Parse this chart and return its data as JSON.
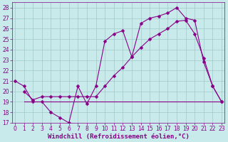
{
  "xlabel": "Windchill (Refroidissement éolien,°C)",
  "bg_color": "#c8eaea",
  "grid_color": "#a0c8c8",
  "line_color": "#880088",
  "xlim": [
    -0.3,
    23.3
  ],
  "ylim": [
    17,
    28.5
  ],
  "yticks": [
    17,
    18,
    19,
    20,
    21,
    22,
    23,
    24,
    25,
    26,
    27,
    28
  ],
  "xticks": [
    0,
    1,
    2,
    3,
    4,
    5,
    6,
    7,
    8,
    9,
    10,
    11,
    12,
    13,
    14,
    15,
    16,
    17,
    18,
    19,
    20,
    21,
    22,
    23
  ],
  "line1_x": [
    0,
    1,
    2,
    3,
    4,
    5,
    6,
    7,
    8,
    9,
    10,
    11,
    12,
    13,
    14,
    15,
    16,
    17,
    18,
    19,
    20,
    21,
    22,
    23
  ],
  "line1_y": [
    21,
    20.5,
    19,
    19,
    18,
    17.5,
    17,
    20.5,
    18.8,
    20.5,
    24.8,
    25.5,
    25.8,
    23.3,
    26.5,
    27,
    27.2,
    27.5,
    28,
    27,
    26.8,
    22.8,
    20.5,
    19
  ],
  "line2_x": [
    1,
    3,
    19,
    23
  ],
  "line2_y": [
    19,
    19,
    19,
    19
  ],
  "line3_x": [
    1,
    2,
    3,
    4,
    5,
    6,
    7,
    8,
    9,
    10,
    11,
    12,
    13,
    14,
    15,
    16,
    17,
    18,
    19,
    20,
    21,
    22,
    23
  ],
  "line3_y": [
    20,
    19.2,
    19.5,
    19.5,
    19.5,
    19.5,
    19.5,
    19.5,
    19.5,
    20.5,
    21.5,
    22.3,
    23.3,
    24.2,
    25.0,
    25.5,
    26.0,
    26.7,
    26.8,
    25.5,
    23.2,
    20.5,
    19
  ],
  "xlabel_fontsize": 6.5,
  "tick_fontsize": 5.5,
  "marker": "D",
  "markersize": 2.5,
  "lw1": 0.8,
  "lw2": 0.8,
  "lw3": 0.8
}
